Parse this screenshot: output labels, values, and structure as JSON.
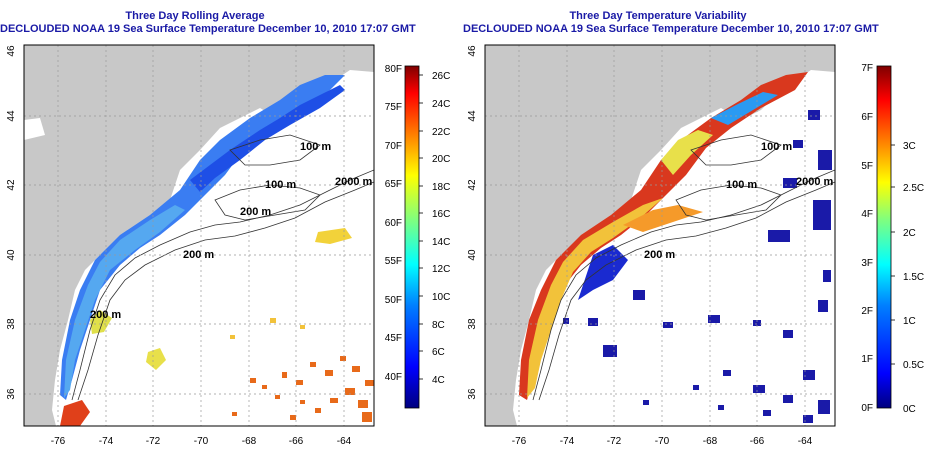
{
  "maps": [
    {
      "title": "Three Day Rolling Average",
      "subtitle": "DECLOUDED NOAA 19 Sea Surface Temperature December 10, 2010 17:07 GMT",
      "colorbar_left_labels": [
        "80F",
        "75F",
        "70F",
        "65F",
        "60F",
        "55F",
        "50F",
        "45F",
        "40F"
      ],
      "colorbar_right_labels": [
        "26C",
        "24C",
        "22C",
        "20C",
        "18C",
        "16C",
        "14C",
        "12C",
        "10C",
        "8C",
        "6C",
        "4C"
      ]
    },
    {
      "title": "Three Day Temperature Variability",
      "subtitle": "DECLOUDED NOAA 19 Sea Surface Temperature December 10, 2010 17:07 GMT",
      "colorbar_left_labels": [
        "7F",
        "6F",
        "5F",
        "4F",
        "3F",
        "2F",
        "1F",
        "0F"
      ],
      "colorbar_right_labels": [
        "3C",
        "2.5C",
        "2C",
        "1.5C",
        "1C",
        "0.5C",
        "0C"
      ]
    }
  ],
  "axes": {
    "x_ticks": [
      "-76",
      "-74",
      "-72",
      "-70",
      "-68",
      "-66",
      "-64"
    ],
    "y_ticks": [
      "36",
      "38",
      "40",
      "42",
      "44",
      "46"
    ]
  },
  "contour_labels": {
    "left": [
      "100 m",
      "100 m",
      "2000 m",
      "200 m",
      "200 m",
      "200 m"
    ],
    "right": [
      "100 m",
      "100 m",
      "2000 m",
      "200 m"
    ]
  },
  "colors": {
    "title": "#1a1aa6",
    "land": "#c8c8c8",
    "sst_scale": [
      "#00007f",
      "#0000ff",
      "#007fff",
      "#00ffff",
      "#7fff7f",
      "#ffff00",
      "#ff7f00",
      "#ff0000",
      "#7f0000"
    ]
  }
}
